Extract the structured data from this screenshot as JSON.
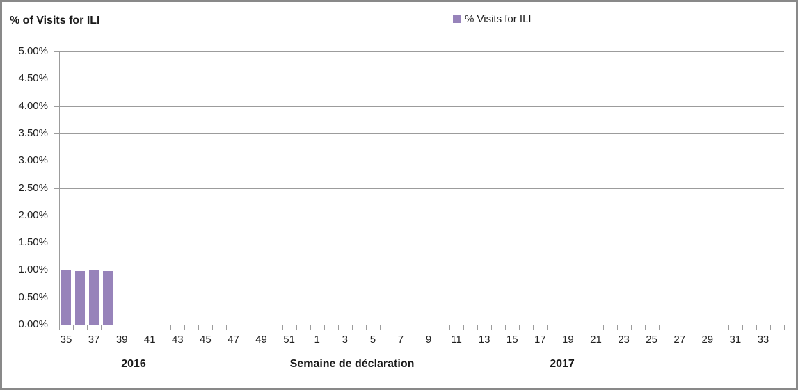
{
  "title": "% of Visits for ILI",
  "legend": {
    "label": "% Visits for ILI",
    "swatch_color": "#9783BA"
  },
  "footer": {
    "year_2016": "2016",
    "axis_title": "Semaine de déclaration",
    "year_2017": "2017"
  },
  "colors": {
    "bar": "#9783BA",
    "gridline": "#9c9c9c",
    "frame_border": "#898989",
    "text": "#1a1a1a"
  },
  "chart_data": {
    "type": "bar",
    "title": "% of Visits for ILI",
    "xlabel": "Semaine de déclaration",
    "ylabel": "% of Visits for ILI",
    "legend_position": "top-center",
    "grid": true,
    "ylim": [
      0,
      5
    ],
    "y_tick_step": 0.5,
    "y_tick_labels": [
      "0.00%",
      "0.50%",
      "1.00%",
      "1.50%",
      "2.00%",
      "2.50%",
      "3.00%",
      "3.50%",
      "4.00%",
      "4.50%",
      "5.00%"
    ],
    "x_axis": {
      "description": "Weekly categories, week 35 of 2016 through week 34 of 2017",
      "total_categories": 52,
      "labeled_ticks": [
        "35",
        "37",
        "39",
        "41",
        "43",
        "45",
        "47",
        "49",
        "51",
        "1",
        "3",
        "5",
        "7",
        "9",
        "11",
        "13",
        "15",
        "17",
        "19",
        "21",
        "23",
        "25",
        "27",
        "29",
        "31",
        "33"
      ],
      "year_groups": [
        "2016",
        "2017"
      ]
    },
    "series": [
      {
        "name": "% Visits for ILI",
        "color": "#9783BA",
        "points": [
          {
            "week": 35,
            "year": 2016,
            "value": 1.0
          },
          {
            "week": 36,
            "year": 2016,
            "value": 0.98
          },
          {
            "week": 37,
            "year": 2016,
            "value": 1.0
          },
          {
            "week": 38,
            "year": 2016,
            "value": 0.98
          }
        ]
      }
    ]
  }
}
